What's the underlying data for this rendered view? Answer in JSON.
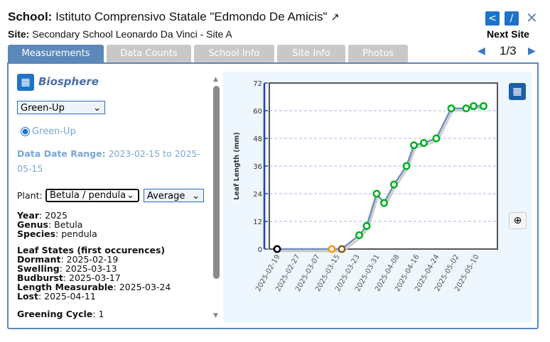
{
  "header": {
    "school_label": "School:",
    "school_name": "Istituto Comprensivo Statale \"Edmondo De Amicis\"",
    "site_label": "Site:",
    "site_name": "Secondary School Leonardo Da Vinci - Site A",
    "next_site": "Next Site",
    "pager": "1/3"
  },
  "tabs": [
    {
      "label": "Measurements"
    },
    {
      "label": "Data Counts"
    },
    {
      "label": "School Info"
    },
    {
      "label": "Site Info"
    },
    {
      "label": "Photos"
    }
  ],
  "left": {
    "protocol": "Biosphere",
    "measure_select": "Green-Up",
    "radio": "Green-Up",
    "range_label": "Data Date Range:",
    "range_value": "2023-02-15 to 2025-05-15",
    "plant_label": "Plant:",
    "plant_select": "Betula / pendula",
    "stat_select": "Average",
    "year_label": "Year",
    "year": "2025",
    "genus_label": "Genus",
    "genus": "Betula",
    "species_label": "Species",
    "species": "pendula",
    "leaf_states_title": "Leaf States (first occurences)",
    "states": [
      {
        "label": "Dormant",
        "value": "2025-02-19"
      },
      {
        "label": "Swelling",
        "value": "2025-03-13"
      },
      {
        "label": "Budburst",
        "value": "2025-03-17"
      },
      {
        "label": "Length Measurable",
        "value": "2025-03-24"
      },
      {
        "label": "Lost",
        "value": "2025-04-11"
      }
    ],
    "cycle_label": "Greening Cycle",
    "cycle": "1"
  },
  "chart_data": {
    "type": "line",
    "ylabel": "Leaf Length (mm)",
    "ylim": [
      0,
      72
    ],
    "yticks": [
      "0",
      "12",
      "24",
      "36",
      "48",
      "60",
      "72"
    ],
    "xticks": [
      "2025-02-19",
      "2025-02-27",
      "2025-03-07",
      "2025-03-15",
      "2025-03-23",
      "2025-03-31",
      "2025-04-08",
      "2025-04-16",
      "2025-04-24",
      "2025-05-02",
      "2025-05-10"
    ],
    "grid": true,
    "colors": {
      "dormant": "#000000",
      "swelling": "#ff9900",
      "budburst": "#8b5a1a",
      "measurable": "#00b020",
      "line": "#6f8fbf"
    },
    "points": [
      {
        "x": "2025-02-19",
        "y": 0,
        "state": "dormant"
      },
      {
        "x": "2025-03-13",
        "y": 0,
        "state": "swelling"
      },
      {
        "x": "2025-03-17",
        "y": 0,
        "state": "budburst"
      },
      {
        "x": "2025-03-24",
        "y": 6,
        "state": "measurable"
      },
      {
        "x": "2025-03-27",
        "y": 10,
        "state": "measurable"
      },
      {
        "x": "2025-03-31",
        "y": 24,
        "state": "measurable"
      },
      {
        "x": "2025-04-03",
        "y": 20,
        "state": "measurable"
      },
      {
        "x": "2025-04-07",
        "y": 28,
        "state": "measurable"
      },
      {
        "x": "2025-04-12",
        "y": 36,
        "state": "measurable"
      },
      {
        "x": "2025-04-15",
        "y": 45,
        "state": "measurable"
      },
      {
        "x": "2025-04-19",
        "y": 46,
        "state": "measurable"
      },
      {
        "x": "2025-04-24",
        "y": 48,
        "state": "measurable"
      },
      {
        "x": "2025-04-30",
        "y": 61,
        "state": "measurable"
      },
      {
        "x": "2025-05-06",
        "y": 61,
        "state": "measurable"
      },
      {
        "x": "2025-05-09",
        "y": 62,
        "state": "measurable"
      },
      {
        "x": "2025-05-13",
        "y": 62,
        "state": "measurable"
      }
    ]
  }
}
